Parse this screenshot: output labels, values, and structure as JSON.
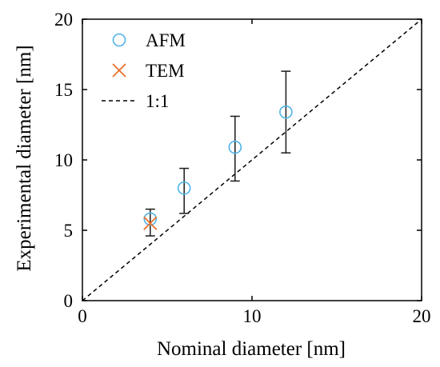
{
  "chart_data": {
    "type": "scatter",
    "title": "",
    "xlabel": "Nominal diameter [nm]",
    "ylabel": "Experimental diameter [nm]",
    "xlim": [
      0,
      20
    ],
    "ylim": [
      0,
      20
    ],
    "xticks": [
      0,
      10,
      20
    ],
    "yticks": [
      0,
      5,
      10,
      15,
      20
    ],
    "grid": false,
    "legend_position": "top-left",
    "series": [
      {
        "name": "AFM",
        "marker": "circle",
        "color": "#4FB3E8",
        "points": [
          {
            "x": 4,
            "y": 5.8,
            "err_low": 4.6,
            "err_high": 6.5
          },
          {
            "x": 6,
            "y": 8.0,
            "err_low": 6.2,
            "err_high": 9.4
          },
          {
            "x": 9,
            "y": 10.9,
            "err_low": 8.5,
            "err_high": 13.1
          },
          {
            "x": 12,
            "y": 13.4,
            "err_low": 10.5,
            "err_high": 16.3
          }
        ]
      },
      {
        "name": "TEM",
        "marker": "cross",
        "color": "#E8702A",
        "points": [
          {
            "x": 4,
            "y": 5.5
          }
        ]
      },
      {
        "name": "1:1",
        "marker": "dashed-line",
        "color": "#000000",
        "points": [
          {
            "x": 0,
            "y": 0
          },
          {
            "x": 20,
            "y": 20
          }
        ]
      }
    ]
  }
}
